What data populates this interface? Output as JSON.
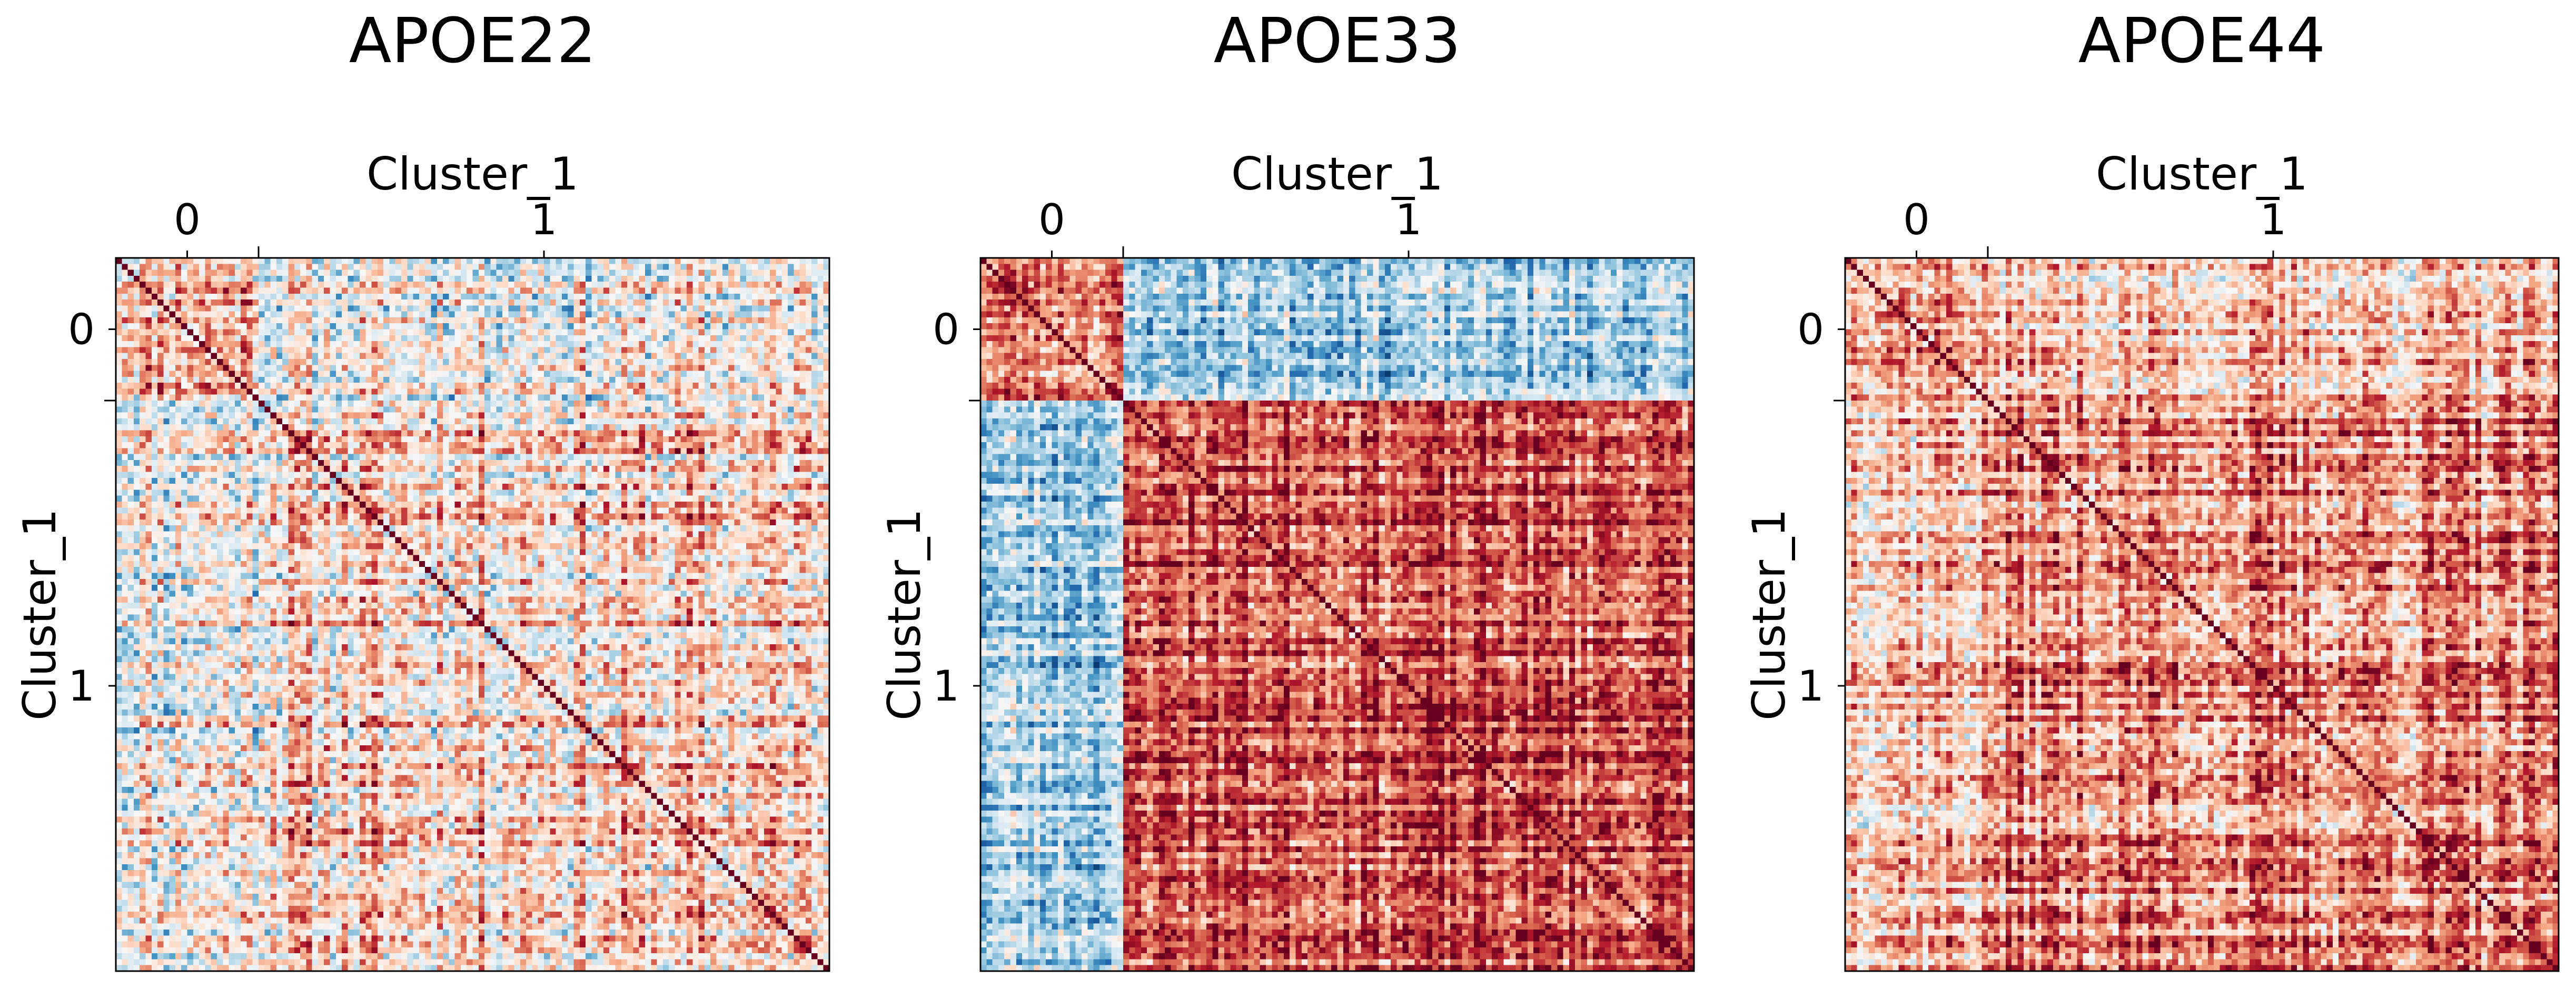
{
  "chart_data": [
    {
      "type": "heatmap",
      "title": "APOE22",
      "xlabel": "Cluster_1",
      "ylabel": "Cluster_1",
      "x_ticks": [
        "0",
        "1"
      ],
      "y_ticks": [
        "0",
        "1"
      ],
      "cluster_boundaries": [
        0.2
      ],
      "diagonal_value": 1.0,
      "block_means": [
        [
          0.35,
          0.05
        ],
        [
          0.05,
          0.2
        ]
      ],
      "noise": 0.45,
      "colormap": [
        "#053061",
        "#2166ac",
        "#4393c3",
        "#92c5de",
        "#d1e5f0",
        "#f7f7f7",
        "#fddbc7",
        "#f4a582",
        "#d6604d",
        "#b2182b",
        "#67001f"
      ],
      "value_range": [
        -1,
        1
      ],
      "seed": 11
    },
    {
      "type": "heatmap",
      "title": "APOE33",
      "xlabel": "Cluster_1",
      "ylabel": "Cluster_1",
      "x_ticks": [
        "0",
        "1"
      ],
      "y_ticks": [
        "0",
        "1"
      ],
      "cluster_boundaries": [
        0.2
      ],
      "diagonal_value": 1.0,
      "block_means": [
        [
          0.5,
          -0.3
        ],
        [
          -0.3,
          0.65
        ]
      ],
      "noise": 0.35,
      "colormap": [
        "#053061",
        "#2166ac",
        "#4393c3",
        "#92c5de",
        "#d1e5f0",
        "#f7f7f7",
        "#fddbc7",
        "#f4a582",
        "#d6604d",
        "#b2182b",
        "#67001f"
      ],
      "value_range": [
        -1,
        1
      ],
      "seed": 23
    },
    {
      "type": "heatmap",
      "title": "APOE44",
      "xlabel": "Cluster_1",
      "ylabel": "Cluster_1",
      "x_ticks": [
        "0",
        "1"
      ],
      "y_ticks": [
        "0",
        "1"
      ],
      "cluster_boundaries": [
        0.2
      ],
      "diagonal_value": 1.0,
      "block_means": [
        [
          0.45,
          0.3
        ],
        [
          0.3,
          0.45
        ]
      ],
      "noise": 0.4,
      "colormap": [
        "#053061",
        "#2166ac",
        "#4393c3",
        "#92c5de",
        "#d1e5f0",
        "#f7f7f7",
        "#fddbc7",
        "#f4a582",
        "#d6604d",
        "#b2182b",
        "#67001f"
      ],
      "value_range": [
        -1,
        1
      ],
      "seed": 37
    }
  ]
}
